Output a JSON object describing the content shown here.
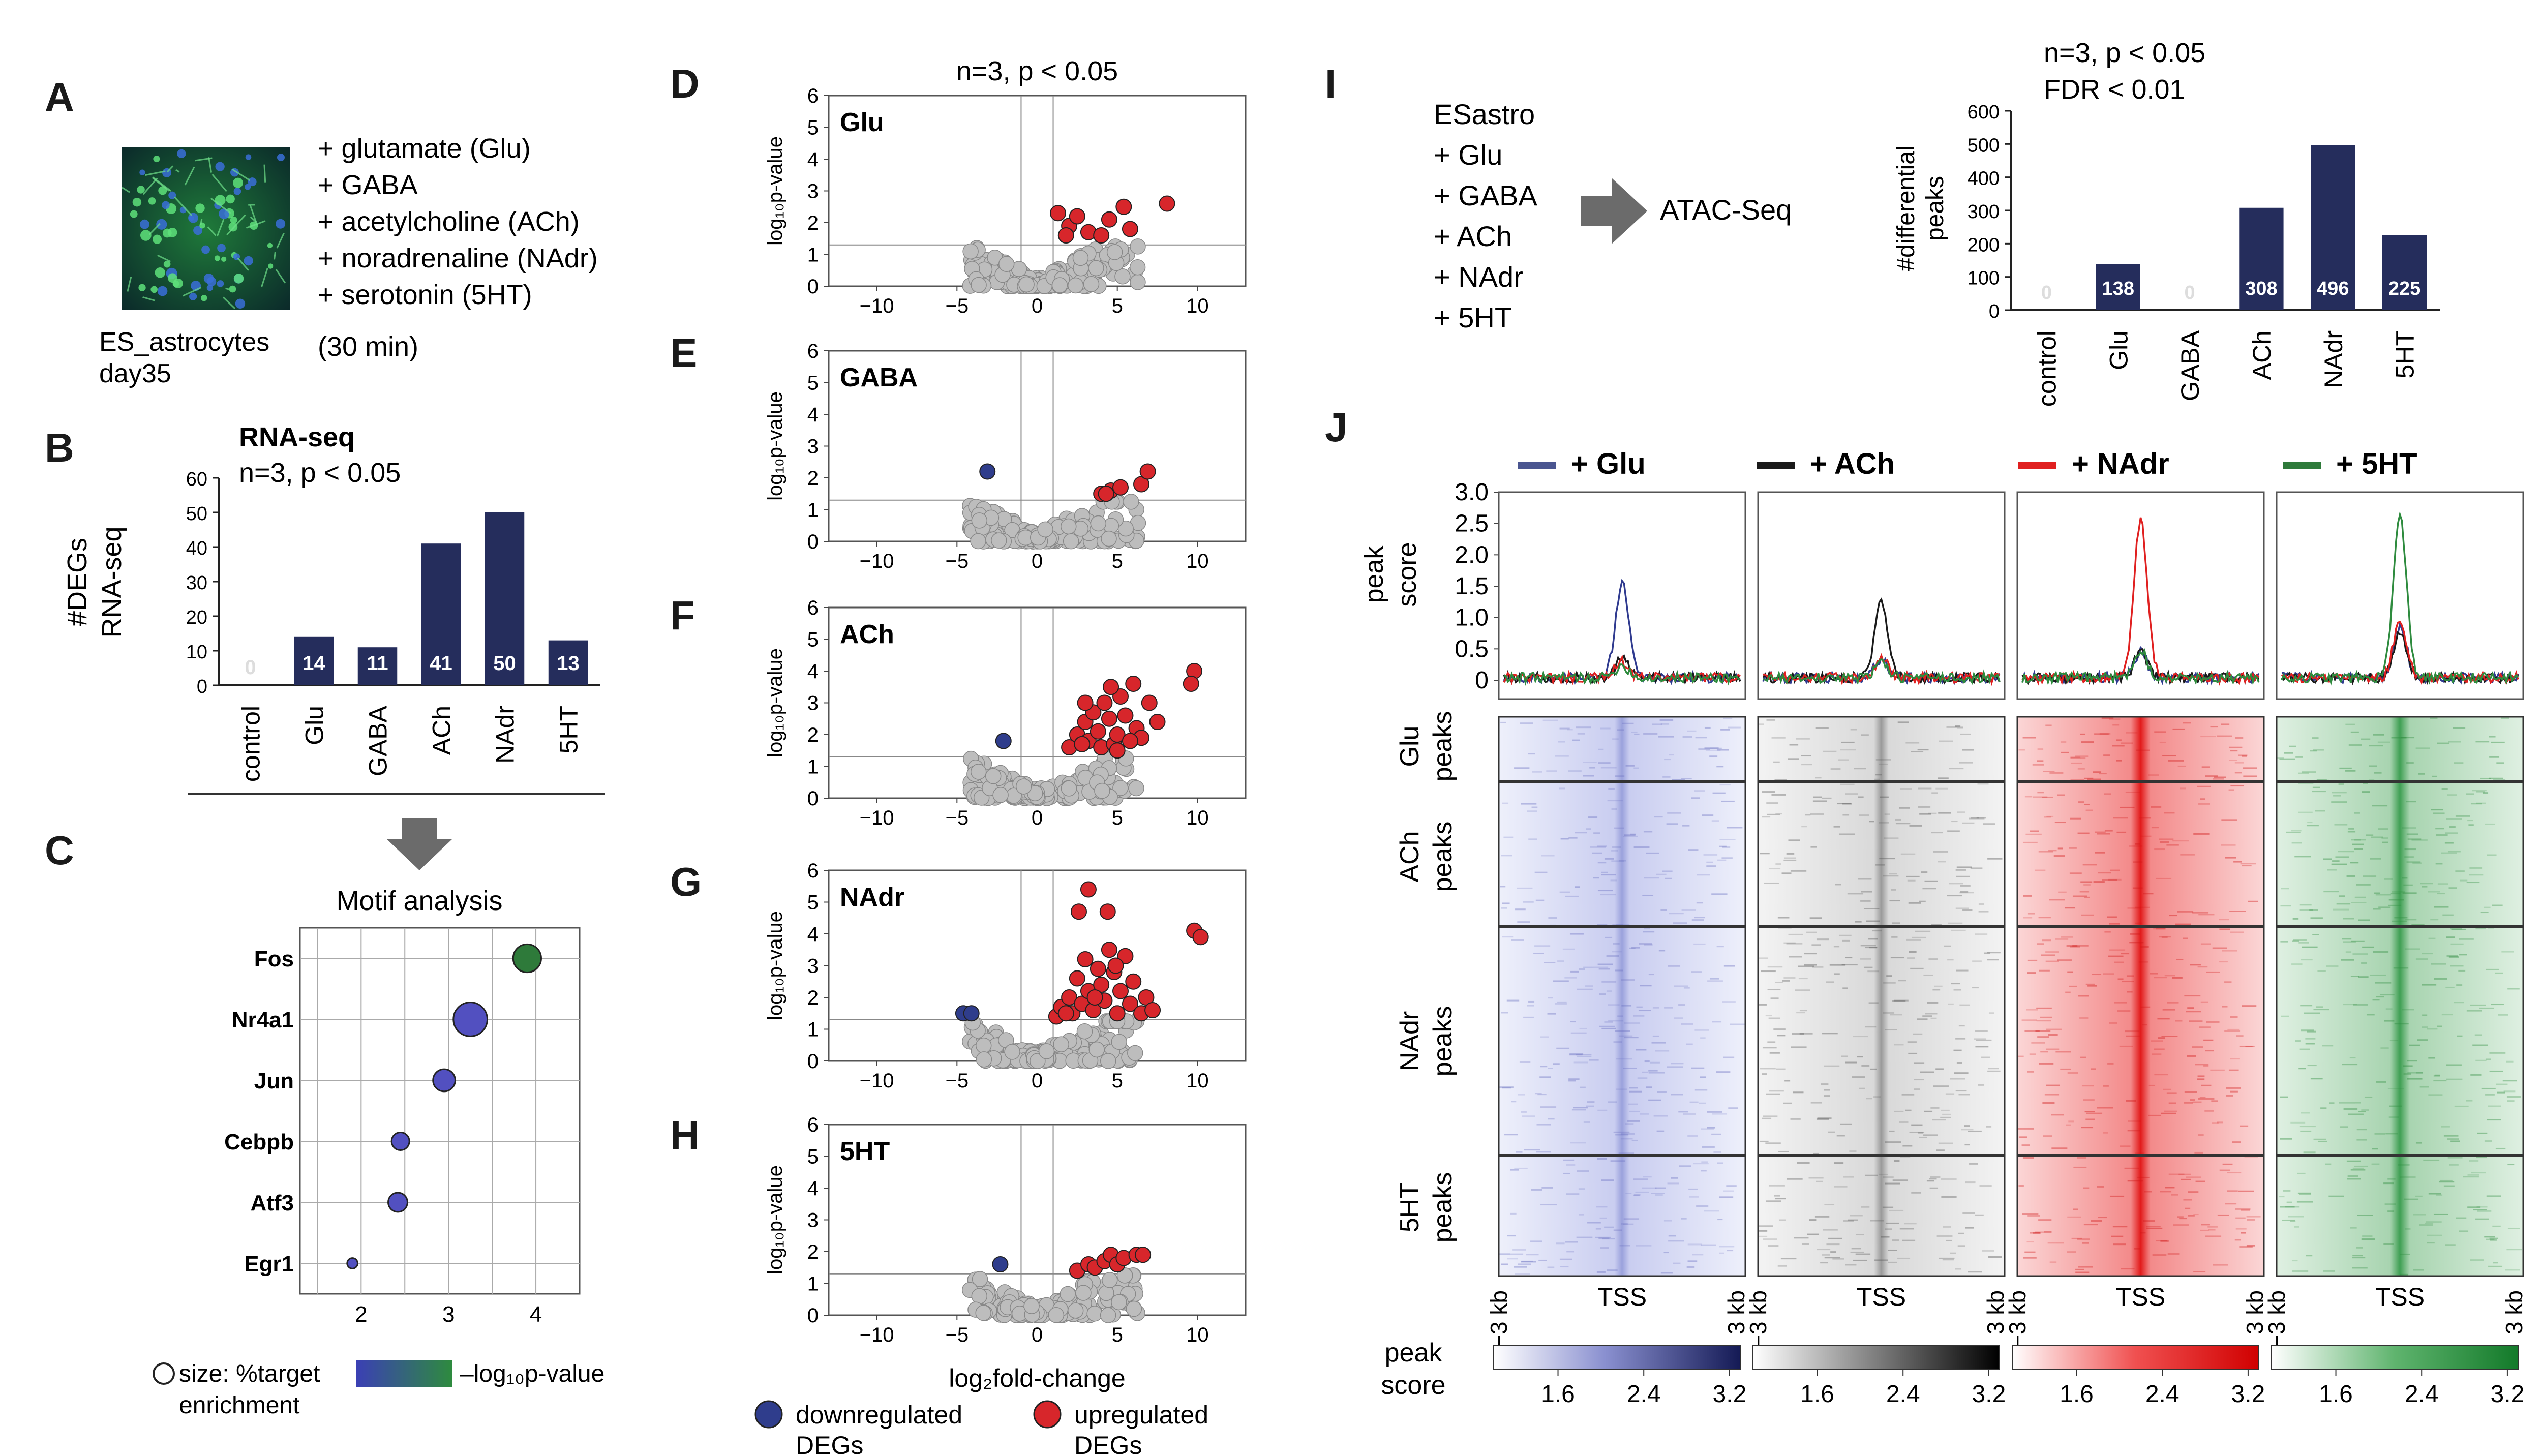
{
  "panel_letters": [
    "A",
    "B",
    "C",
    "D",
    "E",
    "F",
    "G",
    "H",
    "I",
    "J"
  ],
  "panelA": {
    "image_caption": [
      "ES_astrocytes",
      "day35"
    ],
    "treatments": [
      "+ glutamate (Glu)",
      "+ GABA",
      "+ acetylcholine (ACh)",
      "+ noradrenaline (NAdr)",
      "+ serotonin (5HT)"
    ],
    "duration": "(30 min)"
  },
  "panelB": {
    "title": "RNA-seq",
    "subtitle": "n=3, p < 0.05",
    "ylabel": [
      "#DEGs",
      "RNA-seq"
    ]
  },
  "panelC": {
    "title": "Motif analysis",
    "size_legend": [
      "size: %target",
      "enrichment"
    ],
    "color_legend": "–log₁₀p-value"
  },
  "volcano": {
    "header": "n=3, p < 0.05",
    "ylabel": "log₁₀p-value",
    "xlabel": "log₂fold-change",
    "legend_down": [
      "downregulated",
      "DEGs"
    ],
    "legend_up": [
      "upregulated",
      "DEGs"
    ],
    "colors": {
      "up": "#d7262b",
      "down": "#2f3d8c",
      "ns": "#bdbdbd"
    }
  },
  "panelI": {
    "conditions": [
      "ESastro",
      "+ Glu",
      "+ GABA",
      "+ ACh",
      "+ NAdr",
      "+ 5HT"
    ],
    "method": "ATAC-Seq",
    "stats": [
      "n=3, p < 0.05",
      "FDR < 0.01"
    ],
    "ylabel": [
      "#differential",
      "peaks"
    ]
  },
  "panelJ": {
    "legend": [
      "+ Glu",
      "+ ACh",
      "+ NAdr",
      "+ 5HT"
    ],
    "profile_ylabel": [
      "peak",
      "score"
    ],
    "row_labels": [
      [
        "Glu",
        "peaks"
      ],
      [
        "ACh",
        "peaks"
      ],
      [
        "NAdr",
        "peaks"
      ],
      [
        "5HT",
        "peaks"
      ]
    ],
    "x_ticks": [
      "−3 kb",
      "TSS",
      "3 kb"
    ],
    "colorbar_label": [
      "peak",
      "score"
    ],
    "colorbar_ticks": [
      "1.6",
      "2.4",
      "3.2"
    ],
    "colors": {
      "glu": "#2f3a8f",
      "ach": "#1a1a1a",
      "nadr": "#e02020",
      "5ht": "#2e8b3e"
    }
  },
  "chart_data": [
    {
      "id": "B",
      "type": "bar",
      "title": "RNA-seq",
      "ylabel": "#DEGs RNA-seq",
      "categories": [
        "control",
        "Glu",
        "GABA",
        "ACh",
        "NAdr",
        "5HT"
      ],
      "values": [
        0,
        14,
        11,
        41,
        50,
        13
      ],
      "ylim": [
        0,
        60
      ],
      "yticks": [
        0,
        10,
        20,
        30,
        40,
        50,
        60
      ],
      "color": "#252d5c"
    },
    {
      "id": "C",
      "type": "scatter",
      "title": "Motif analysis",
      "categories": [
        "Fos",
        "Nr4a1",
        "Jun",
        "Cebpb",
        "Atf3",
        "Egr1"
      ],
      "x": [
        3.9,
        3.25,
        2.95,
        2.45,
        2.42,
        1.9
      ],
      "size_pct": [
        30,
        38,
        22,
        16,
        18,
        6
      ],
      "neg_log10_p": [
        5.2,
        3.2,
        3.0,
        3.0,
        3.0,
        2.8
      ],
      "xlim": [
        1.3,
        4.5
      ],
      "xticks": [
        2,
        3,
        4
      ]
    },
    {
      "id": "D",
      "type": "scatter",
      "label": "Glu",
      "xlim": [
        -13,
        13
      ],
      "ylim": [
        0,
        6
      ],
      "xticks": [
        -10,
        -5,
        0,
        5,
        10
      ],
      "yticks": [
        0,
        1,
        2,
        3,
        4,
        5,
        6
      ],
      "up": [
        [
          1.3,
          2.3
        ],
        [
          2.0,
          1.9
        ],
        [
          2.5,
          2.2
        ],
        [
          1.8,
          1.6
        ],
        [
          3.2,
          1.7
        ],
        [
          4.0,
          1.6
        ],
        [
          4.5,
          2.1
        ],
        [
          5.4,
          2.5
        ],
        [
          8.1,
          2.6
        ],
        [
          5.8,
          1.8
        ]
      ],
      "down": []
    },
    {
      "id": "E",
      "type": "scatter",
      "label": "GABA",
      "xlim": [
        -13,
        13
      ],
      "ylim": [
        0,
        6
      ],
      "xticks": [
        -10,
        -5,
        0,
        5,
        10
      ],
      "yticks": [
        0,
        1,
        2,
        3,
        4,
        5,
        6
      ],
      "up": [
        [
          4.0,
          1.5
        ],
        [
          4.6,
          1.6
        ],
        [
          5.2,
          1.7
        ],
        [
          4.3,
          1.5
        ],
        [
          6.5,
          1.8
        ],
        [
          6.9,
          2.2
        ]
      ],
      "down": [
        [
          -3.1,
          2.2
        ]
      ]
    },
    {
      "id": "F",
      "type": "scatter",
      "label": "ACh",
      "xlim": [
        -13,
        13
      ],
      "ylim": [
        0,
        6
      ],
      "xticks": [
        -10,
        -5,
        0,
        5,
        10
      ],
      "yticks": [
        0,
        1,
        2,
        3,
        4,
        5,
        6
      ],
      "up": [
        [
          2.0,
          1.6
        ],
        [
          2.5,
          2.0
        ],
        [
          3.0,
          2.4
        ],
        [
          3.2,
          1.8
        ],
        [
          3.5,
          2.7
        ],
        [
          3.8,
          2.1
        ],
        [
          4.0,
          1.6
        ],
        [
          4.2,
          3.0
        ],
        [
          4.5,
          2.5
        ],
        [
          4.8,
          1.7
        ],
        [
          5.0,
          2.0
        ],
        [
          5.2,
          3.2
        ],
        [
          5.5,
          2.6
        ],
        [
          5.0,
          1.5
        ],
        [
          6.0,
          3.6
        ],
        [
          6.2,
          2.2
        ],
        [
          6.5,
          1.9
        ],
        [
          7.0,
          3.0
        ],
        [
          7.5,
          2.4
        ],
        [
          4.6,
          3.5
        ],
        [
          3.0,
          3.0
        ],
        [
          9.8,
          4.0
        ],
        [
          9.6,
          3.6
        ],
        [
          5.8,
          1.8
        ],
        [
          2.8,
          1.7
        ]
      ],
      "down": [
        [
          -2.1,
          1.8
        ]
      ]
    },
    {
      "id": "G",
      "type": "scatter",
      "label": "NAdr",
      "xlim": [
        -13,
        13
      ],
      "ylim": [
        0,
        6
      ],
      "xticks": [
        -10,
        -5,
        0,
        5,
        10
      ],
      "yticks": [
        0,
        1,
        2,
        3,
        4,
        5,
        6
      ],
      "up": [
        [
          1.2,
          1.4
        ],
        [
          1.5,
          1.7
        ],
        [
          2.0,
          2.0
        ],
        [
          2.2,
          1.5
        ],
        [
          2.5,
          2.6
        ],
        [
          2.8,
          1.8
        ],
        [
          3.0,
          3.2
        ],
        [
          3.2,
          2.2
        ],
        [
          3.5,
          1.6
        ],
        [
          3.8,
          2.9
        ],
        [
          4.0,
          2.4
        ],
        [
          4.2,
          1.9
        ],
        [
          4.5,
          3.5
        ],
        [
          4.8,
          2.8
        ],
        [
          5.0,
          1.5
        ],
        [
          5.2,
          2.2
        ],
        [
          5.5,
          3.3
        ],
        [
          5.8,
          1.8
        ],
        [
          6.0,
          2.5
        ],
        [
          6.5,
          1.5
        ],
        [
          6.8,
          2.0
        ],
        [
          7.2,
          1.6
        ],
        [
          3.2,
          5.4
        ],
        [
          2.6,
          4.7
        ],
        [
          4.4,
          4.7
        ],
        [
          9.8,
          4.1
        ],
        [
          10.2,
          3.9
        ],
        [
          4.9,
          3.0
        ],
        [
          1.8,
          1.5
        ],
        [
          3.6,
          2.0
        ]
      ],
      "down": [
        [
          -4.6,
          1.5
        ],
        [
          -4.1,
          1.5
        ]
      ]
    },
    {
      "id": "H",
      "type": "scatter",
      "label": "5HT",
      "xlim": [
        -13,
        13
      ],
      "ylim": [
        0,
        6
      ],
      "xticks": [
        -10,
        -5,
        0,
        5,
        10
      ],
      "yticks": [
        0,
        1,
        2,
        3,
        4,
        5,
        6
      ],
      "up": [
        [
          2.5,
          1.4
        ],
        [
          3.2,
          1.6
        ],
        [
          3.6,
          1.5
        ],
        [
          4.2,
          1.7
        ],
        [
          4.6,
          1.9
        ],
        [
          5.0,
          1.6
        ],
        [
          5.4,
          1.8
        ],
        [
          6.2,
          1.9
        ],
        [
          6.6,
          1.9
        ]
      ],
      "down": [
        [
          -2.3,
          1.6
        ]
      ]
    },
    {
      "id": "I",
      "type": "bar",
      "ylabel": "#differential peaks",
      "categories": [
        "control",
        "Glu",
        "GABA",
        "ACh",
        "NAdr",
        "5HT"
      ],
      "values": [
        0,
        138,
        0,
        308,
        496,
        225
      ],
      "ylim": [
        0,
        600
      ],
      "yticks": [
        0,
        100,
        200,
        300,
        400,
        500,
        600
      ],
      "color": "#252d5c"
    },
    {
      "id": "J-profiles",
      "type": "line",
      "ylabel": "peak score",
      "ylim": [
        -0.3,
        3.0
      ],
      "yticks": [
        0,
        0.5,
        1.0,
        1.5,
        2.0,
        2.5,
        3.0
      ],
      "series_colors": {
        "Glu": "#2f3a8f",
        "ACh": "#1a1a1a",
        "NAdr": "#e02020",
        "5HT": "#2e8b3e"
      },
      "panels": [
        {
          "name": "+ Glu",
          "peaks": {
            "Glu": 1.5,
            "ACh": 0.3,
            "NAdr": 0.25,
            "5HT": 0.2
          }
        },
        {
          "name": "+ ACh",
          "peaks": {
            "Glu": 0.3,
            "ACh": 1.2,
            "NAdr": 0.3,
            "5HT": 0.25
          }
        },
        {
          "name": "+ NAdr",
          "peaks": {
            "Glu": 0.4,
            "ACh": 0.4,
            "NAdr": 2.5,
            "5HT": 0.45
          }
        },
        {
          "name": "+ 5HT",
          "peaks": {
            "Glu": 0.8,
            "ACh": 0.7,
            "NAdr": 0.9,
            "5HT": 2.55
          }
        }
      ]
    },
    {
      "id": "J-heatmaps",
      "type": "heatmap",
      "columns": [
        "+ Glu",
        "+ ACh",
        "+ NAdr",
        "+ 5HT"
      ],
      "row_groups": [
        "Glu peaks",
        "ACh peaks",
        "NAdr peaks",
        "5HT peaks"
      ],
      "x_ticks": [
        "−3 kb",
        "TSS",
        "3 kb"
      ],
      "colorbar_ticks": [
        1.6,
        2.4,
        3.2
      ]
    }
  ]
}
